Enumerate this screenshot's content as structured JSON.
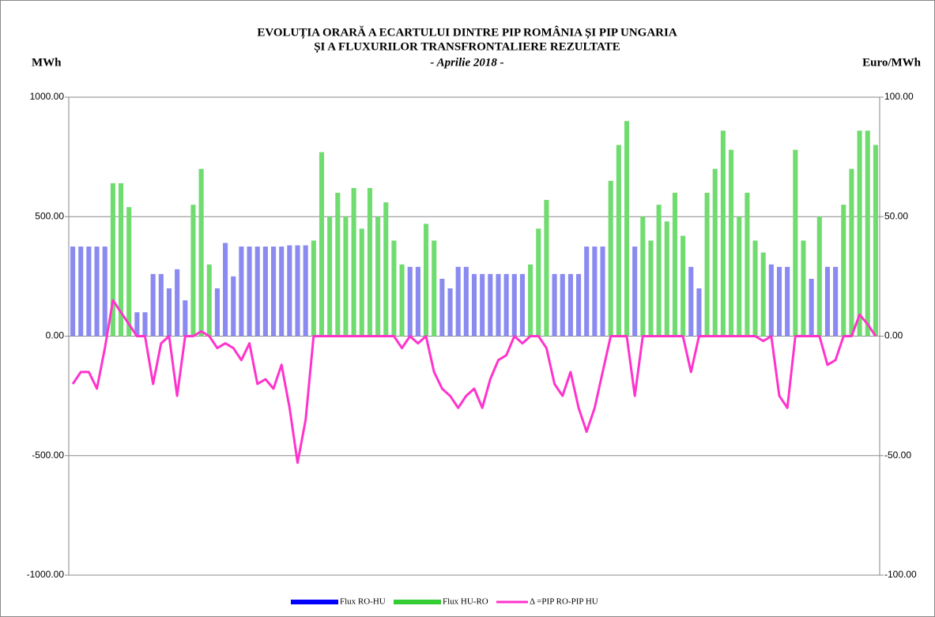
{
  "chart_data": {
    "type": "combo",
    "title": [
      "EVOLUȚIA ORARĂ A ECARTULUI DINTRE PIP ROMÂNIA ȘI PIP UNGARIA",
      "ȘI A FLUXURILOR TRANSFRONTALIERE REZULTATE"
    ],
    "subtitle": "- Aprilie 2018 -",
    "ylabel": "MWh",
    "y2label": "Euro/MWh",
    "ylim": [
      -1000,
      1000
    ],
    "yticks": [
      {
        "value": -1000,
        "label": "-1000.00"
      },
      {
        "value": -500,
        "label": "-500.00"
      },
      {
        "value": 0,
        "label": "0.00"
      },
      {
        "value": 500,
        "label": "500.00"
      },
      {
        "value": 1000,
        "label": "1000.00"
      }
    ],
    "y2lim": [
      -100,
      100
    ],
    "y2ticks": [
      {
        "value": -100,
        "label": "-100.00"
      },
      {
        "value": -50,
        "label": "-50.00"
      },
      {
        "value": 0,
        "label": "0.00"
      },
      {
        "value": 50,
        "label": "50.00"
      },
      {
        "value": 100,
        "label": "100.00"
      }
    ],
    "grid": true,
    "legend": "bottom",
    "series": [
      {
        "name": "Flux RO-HU",
        "type": "bar",
        "color": "#8a8af0",
        "legend_color": "#0000ff",
        "values": [
          375,
          375,
          375,
          375,
          375,
          0,
          0,
          0,
          100,
          100,
          260,
          260,
          200,
          280,
          150,
          0,
          0,
          0,
          200,
          390,
          250,
          375,
          375,
          375,
          375,
          375,
          375,
          380,
          380,
          380,
          0,
          0,
          0,
          0,
          0,
          0,
          0,
          0,
          0,
          0,
          0,
          0,
          290,
          290,
          0,
          0,
          240,
          200,
          290,
          290,
          260,
          260,
          260,
          260,
          260,
          260,
          260,
          0,
          0,
          0,
          260,
          260,
          260,
          260,
          375,
          375,
          375,
          0,
          0,
          0,
          375,
          0,
          0,
          0,
          0,
          0,
          0,
          290,
          200,
          0,
          0,
          0,
          0,
          0,
          0,
          0,
          0,
          300,
          290,
          290,
          0,
          0,
          240,
          0,
          290,
          290,
          0,
          0,
          0,
          0,
          0
        ]
      },
      {
        "name": "Flux HU-RO",
        "type": "bar",
        "color": "#70dc70",
        "legend_color": "#33cc33",
        "values": [
          0,
          0,
          0,
          0,
          0,
          640,
          640,
          540,
          0,
          0,
          0,
          0,
          0,
          0,
          0,
          550,
          700,
          300,
          0,
          0,
          0,
          0,
          0,
          0,
          0,
          0,
          0,
          0,
          0,
          0,
          400,
          770,
          500,
          600,
          500,
          620,
          450,
          620,
          500,
          560,
          400,
          300,
          0,
          0,
          470,
          400,
          0,
          0,
          0,
          0,
          0,
          0,
          0,
          0,
          0,
          0,
          0,
          300,
          450,
          570,
          0,
          0,
          0,
          0,
          0,
          0,
          0,
          650,
          800,
          900,
          0,
          500,
          400,
          550,
          480,
          600,
          420,
          0,
          0,
          600,
          700,
          860,
          780,
          500,
          600,
          400,
          350,
          0,
          0,
          0,
          780,
          400,
          0,
          500,
          0,
          0,
          550,
          700,
          860,
          860,
          800
        ]
      },
      {
        "name": "Δ =PIP RO-PIP HU",
        "type": "line",
        "axis": "y2",
        "color": "#ff33cc",
        "values": [
          -20,
          -15,
          -15,
          -22,
          -5,
          15,
          10,
          5,
          0,
          0,
          -20,
          -3,
          0,
          -25,
          0,
          0,
          2,
          0,
          -5,
          -3,
          -5,
          -10,
          -3,
          -20,
          -18,
          -22,
          -12,
          -30,
          -53,
          -35,
          0,
          0,
          0,
          0,
          0,
          0,
          0,
          0,
          0,
          0,
          0,
          -5,
          0,
          -3,
          0,
          -15,
          -22,
          -25,
          -30,
          -25,
          -22,
          -30,
          -18,
          -10,
          -8,
          0,
          -3,
          0,
          0,
          -5,
          -20,
          -25,
          -15,
          -30,
          -40,
          -30,
          -15,
          0,
          0,
          0,
          -25,
          0,
          0,
          0,
          0,
          0,
          0,
          -15,
          0,
          0,
          0,
          0,
          0,
          0,
          0,
          0,
          -2,
          0,
          -25,
          -30,
          0,
          0,
          0,
          0,
          -12,
          -10,
          0,
          0,
          9,
          5,
          0
        ]
      }
    ]
  }
}
